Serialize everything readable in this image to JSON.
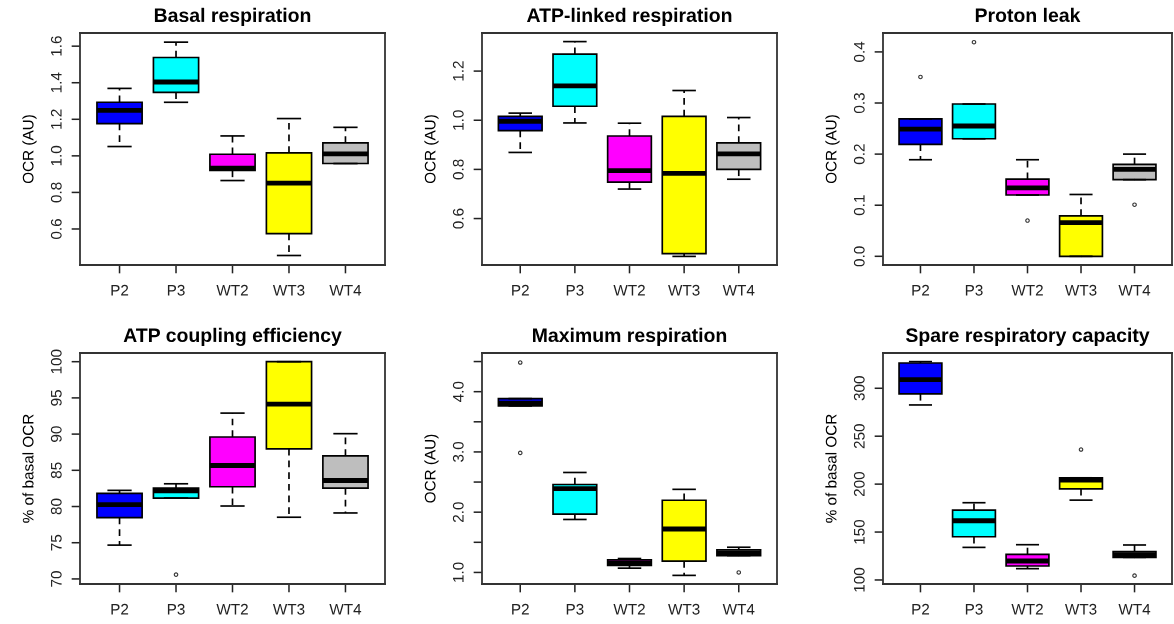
{
  "chart_data": [
    {
      "type": "box",
      "title": "Basal respiration",
      "ylabel": "OCR (AU)",
      "categories": [
        "P2",
        "P3",
        "WT2",
        "WT3",
        "WT4"
      ],
      "colors": [
        "#0000ff",
        "#00ffff",
        "#ff00ff",
        "#ffff00",
        "#bebebe"
      ],
      "ylim": [
        0.403,
        1.672
      ],
      "yticks": [
        0.6,
        0.8,
        {
          "value": 1.0,
          "label": "1.0"
        },
        1.2,
        1.4,
        1.6
      ],
      "boxes": [
        {
          "low": 1.051,
          "q1": 1.176,
          "median": 1.249,
          "q3": 1.293,
          "high": 1.369
        },
        {
          "low": 1.293,
          "q1": 1.347,
          "median": 1.404,
          "q3": 1.538,
          "high": 1.622
        },
        {
          "low": 0.865,
          "q1": 0.92,
          "median": 0.933,
          "q3": 1.009,
          "high": 1.109
        },
        {
          "low": 0.455,
          "q1": 0.575,
          "median": 0.851,
          "q3": 1.016,
          "high": 1.204
        },
        {
          "low": 0.958,
          "q1": 0.958,
          "median": 1.011,
          "q3": 1.071,
          "high": 1.156
        }
      ]
    },
    {
      "type": "box",
      "title": "ATP-linked respiration",
      "ylabel": "OCR (AU)",
      "categories": [
        "P2",
        "P3",
        "WT2",
        "WT3",
        "WT4"
      ],
      "colors": [
        "#0000ff",
        "#00ffff",
        "#ff00ff",
        "#ffff00",
        "#bebebe"
      ],
      "ylim": [
        0.411,
        1.355
      ],
      "yticks": [
        0.6,
        0.8,
        {
          "value": 1.0,
          "label": "1.0"
        },
        1.2
      ],
      "boxes": [
        {
          "low": 0.869,
          "q1": 0.958,
          "median": 0.996,
          "q3": 1.016,
          "high": 1.029
        },
        {
          "low": 0.989,
          "q1": 1.057,
          "median": 1.14,
          "q3": 1.269,
          "high": 1.32
        },
        {
          "low": 0.72,
          "q1": 0.748,
          "median": 0.795,
          "q3": 0.936,
          "high": 0.988
        },
        {
          "low": 0.446,
          "q1": 0.457,
          "median": 0.784,
          "q3": 1.016,
          "high": 1.121
        },
        {
          "low": 0.76,
          "q1": 0.8,
          "median": 0.863,
          "q3": 0.908,
          "high": 1.011
        }
      ]
    },
    {
      "type": "box",
      "title": "Proton leak",
      "ylabel": "OCR (AU)",
      "categories": [
        "P2",
        "P3",
        "WT2",
        "WT3",
        "WT4"
      ],
      "colors": [
        "#0000ff",
        "#00ffff",
        "#ff00ff",
        "#ffff00",
        "#bebebe"
      ],
      "ylim": [
        -0.017,
        0.437
      ],
      "yticks": [
        {
          "value": 0.0,
          "label": "0.0"
        },
        0.1,
        0.2,
        0.3,
        0.4
      ],
      "boxes": [
        {
          "low": 0.189,
          "q1": 0.219,
          "median": 0.249,
          "q3": 0.269,
          "high": 0.269,
          "outliers": [
            0.351
          ]
        },
        {
          "low": 0.23,
          "q1": 0.23,
          "median": 0.255,
          "q3": 0.298,
          "high": 0.298,
          "outliers": [
            0.419
          ]
        },
        {
          "low": 0.12,
          "q1": 0.12,
          "median": 0.134,
          "q3": 0.151,
          "high": 0.189,
          "outliers": [
            0.07
          ]
        },
        {
          "low": 0.0,
          "q1": 0.0,
          "median": 0.066,
          "q3": 0.079,
          "high": 0.121
        },
        {
          "low": 0.15,
          "q1": 0.15,
          "median": 0.17,
          "q3": 0.18,
          "high": 0.2,
          "outliers": [
            0.101
          ]
        }
      ]
    },
    {
      "type": "box",
      "title": "ATP coupling efficiency",
      "ylabel": "% of basal OCR",
      "categories": [
        "P2",
        "P3",
        "WT2",
        "WT3",
        "WT4"
      ],
      "colors": [
        "#0000ff",
        "#00ffff",
        "#ff00ff",
        "#ffff00",
        "#bebebe"
      ],
      "ylim": [
        69.3,
        101.2
      ],
      "yticks": [
        70,
        75,
        80,
        85,
        90,
        95,
        100
      ],
      "boxes": [
        {
          "low": 74.67,
          "q1": 78.47,
          "median": 80.26,
          "q3": 81.81,
          "high": 82.23
        },
        {
          "low": 81.17,
          "q1": 81.17,
          "median": 82.18,
          "q3": 82.54,
          "high": 83.14,
          "outliers": [
            70.6
          ]
        },
        {
          "low": 80.07,
          "q1": 82.73,
          "median": 85.66,
          "q3": 89.6,
          "high": 92.9
        },
        {
          "low": 78.52,
          "q1": 87.95,
          "median": 94.14,
          "q3": 100,
          "high": 100
        },
        {
          "low": 79.11,
          "q1": 82.54,
          "median": 83.6,
          "q3": 86.99,
          "high": 90.06
        }
      ]
    },
    {
      "type": "box",
      "title": "Maximum respiration",
      "ylabel": "OCR (AU)",
      "categories": [
        "P2",
        "P3",
        "WT2",
        "WT3",
        "WT4"
      ],
      "colors": [
        "#0000ff",
        "#00ffff",
        "#ff00ff",
        "#ffff00",
        "#bebebe"
      ],
      "ylim": [
        0.808,
        4.642
      ],
      "yticks": [
        {
          "value": 1.0,
          "label": "1.0"
        },
        {
          "value": 1.5,
          "label": null
        },
        {
          "value": 2.0,
          "label": "2.0"
        },
        {
          "value": 2.5,
          "label": null
        },
        {
          "value": 3.0,
          "label": "3.0"
        },
        {
          "value": 3.5,
          "label": null
        },
        {
          "value": 4.0,
          "label": "4.0"
        },
        {
          "value": 4.5,
          "label": null
        }
      ],
      "boxes": [
        {
          "low": 3.764,
          "q1": 3.764,
          "median": 3.808,
          "q3": 3.885,
          "high": 3.885,
          "outliers": [
            4.484,
            2.984
          ]
        },
        {
          "low": 1.879,
          "q1": 1.967,
          "median": 2.39,
          "q3": 2.46,
          "high": 2.659
        },
        {
          "low": 1.071,
          "q1": 1.115,
          "median": 1.154,
          "q3": 1.209,
          "high": 1.231
        },
        {
          "low": 0.951,
          "q1": 1.187,
          "median": 1.72,
          "q3": 2.198,
          "high": 2.379
        },
        {
          "low": 1.28,
          "q1": 1.28,
          "median": 1.319,
          "q3": 1.374,
          "high": 1.418,
          "outliers": [
            1.0
          ]
        }
      ]
    },
    {
      "type": "box",
      "title": "Spare respiratory capacity",
      "ylabel": "% of basal OCR",
      "categories": [
        "P2",
        "P3",
        "WT2",
        "WT3",
        "WT4"
      ],
      "colors": [
        "#0000ff",
        "#00ffff",
        "#ff00ff",
        "#ffff00",
        "#bebebe"
      ],
      "ylim": [
        95.8,
        336.8
      ],
      "yticks": [
        100,
        150,
        200,
        250,
        300
      ],
      "boxes": [
        {
          "low": 282.6,
          "q1": 294.1,
          "median": 309.0,
          "q3": 326.4,
          "high": 327.8
        },
        {
          "low": 134.0,
          "q1": 145.1,
          "median": 161.8,
          "q3": 172.9,
          "high": 180.6
        },
        {
          "low": 111.8,
          "q1": 114.6,
          "median": 119.8,
          "q3": 126.7,
          "high": 136.8
        },
        {
          "low": 183.3,
          "q1": 195.1,
          "median": 204.2,
          "q3": 206.6,
          "high": 206.6,
          "outliers": [
            236.1
          ]
        },
        {
          "low": 123.6,
          "q1": 123.6,
          "median": 126.4,
          "q3": 129.5,
          "high": 136.5,
          "outliers": [
            104.5
          ]
        }
      ]
    }
  ]
}
